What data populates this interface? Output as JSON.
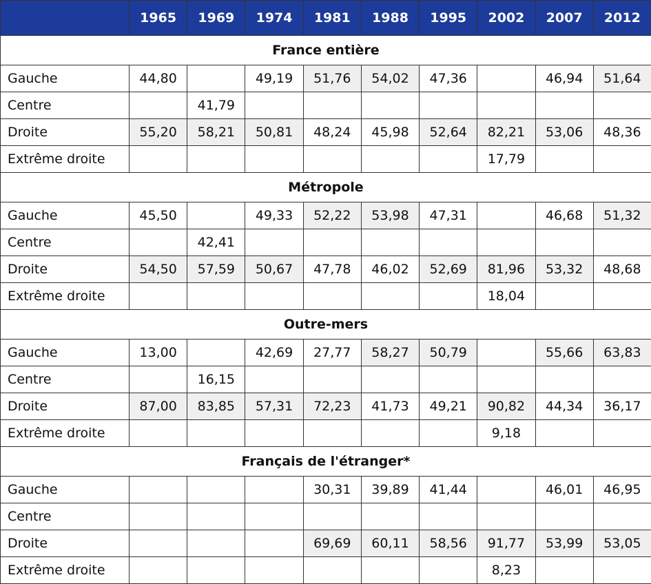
{
  "table": {
    "years": [
      "1965",
      "1969",
      "1974",
      "1981",
      "1988",
      "1995",
      "2002",
      "2007",
      "2012"
    ],
    "sections": [
      {
        "title": "France entière",
        "rows": [
          {
            "label": "Gauche",
            "values": [
              "44,80",
              null,
              "49,19",
              "51,76",
              "54,02",
              "47,36",
              null,
              "46,94",
              "51,64"
            ]
          },
          {
            "label": "Centre",
            "values": [
              null,
              "41,79",
              null,
              null,
              null,
              null,
              null,
              null,
              null
            ]
          },
          {
            "label": "Droite",
            "values": [
              "55,20",
              "58,21",
              "50,81",
              "48,24",
              "45,98",
              "52,64",
              "82,21",
              "53,06",
              "48,36"
            ]
          },
          {
            "label": "Extrême droite",
            "values": [
              null,
              null,
              null,
              null,
              null,
              null,
              "17,79",
              null,
              null
            ]
          }
        ]
      },
      {
        "title": "Métropole",
        "rows": [
          {
            "label": "Gauche",
            "values": [
              "45,50",
              null,
              "49,33",
              "52,22",
              "53,98",
              "47,31",
              null,
              "46,68",
              "51,32"
            ]
          },
          {
            "label": "Centre",
            "values": [
              null,
              "42,41",
              null,
              null,
              null,
              null,
              null,
              null,
              null
            ]
          },
          {
            "label": "Droite",
            "values": [
              "54,50",
              "57,59",
              "50,67",
              "47,78",
              "46,02",
              "52,69",
              "81,96",
              "53,32",
              "48,68"
            ]
          },
          {
            "label": "Extrême droite",
            "values": [
              null,
              null,
              null,
              null,
              null,
              null,
              "18,04",
              null,
              null
            ]
          }
        ]
      },
      {
        "title": "Outre-mers",
        "rows": [
          {
            "label": "Gauche",
            "values": [
              "13,00",
              null,
              "42,69",
              "27,77",
              "58,27",
              "50,79",
              null,
              "55,66",
              "63,83"
            ]
          },
          {
            "label": "Centre",
            "values": [
              null,
              "16,15",
              null,
              null,
              null,
              null,
              null,
              null,
              null
            ]
          },
          {
            "label": "Droite",
            "values": [
              "87,00",
              "83,85",
              "57,31",
              "72,23",
              "41,73",
              "49,21",
              "90,82",
              "44,34",
              "36,17"
            ]
          },
          {
            "label": "Extrême droite",
            "values": [
              null,
              null,
              null,
              null,
              null,
              null,
              "9,18",
              null,
              null
            ]
          }
        ]
      },
      {
        "title": "Français de l'étranger*",
        "rows": [
          {
            "label": "Gauche",
            "values": [
              null,
              null,
              null,
              "30,31",
              "39,89",
              "41,44",
              null,
              "46,01",
              "46,95"
            ]
          },
          {
            "label": "Centre",
            "values": [
              null,
              null,
              null,
              null,
              null,
              null,
              null,
              null,
              null
            ]
          },
          {
            "label": "Droite",
            "values": [
              null,
              null,
              null,
              "69,69",
              "60,11",
              "58,56",
              "91,77",
              "53,99",
              "53,05"
            ]
          },
          {
            "label": "Extrême droite",
            "values": [
              null,
              null,
              null,
              null,
              null,
              null,
              "8,23",
              null,
              null
            ]
          }
        ]
      }
    ]
  }
}
